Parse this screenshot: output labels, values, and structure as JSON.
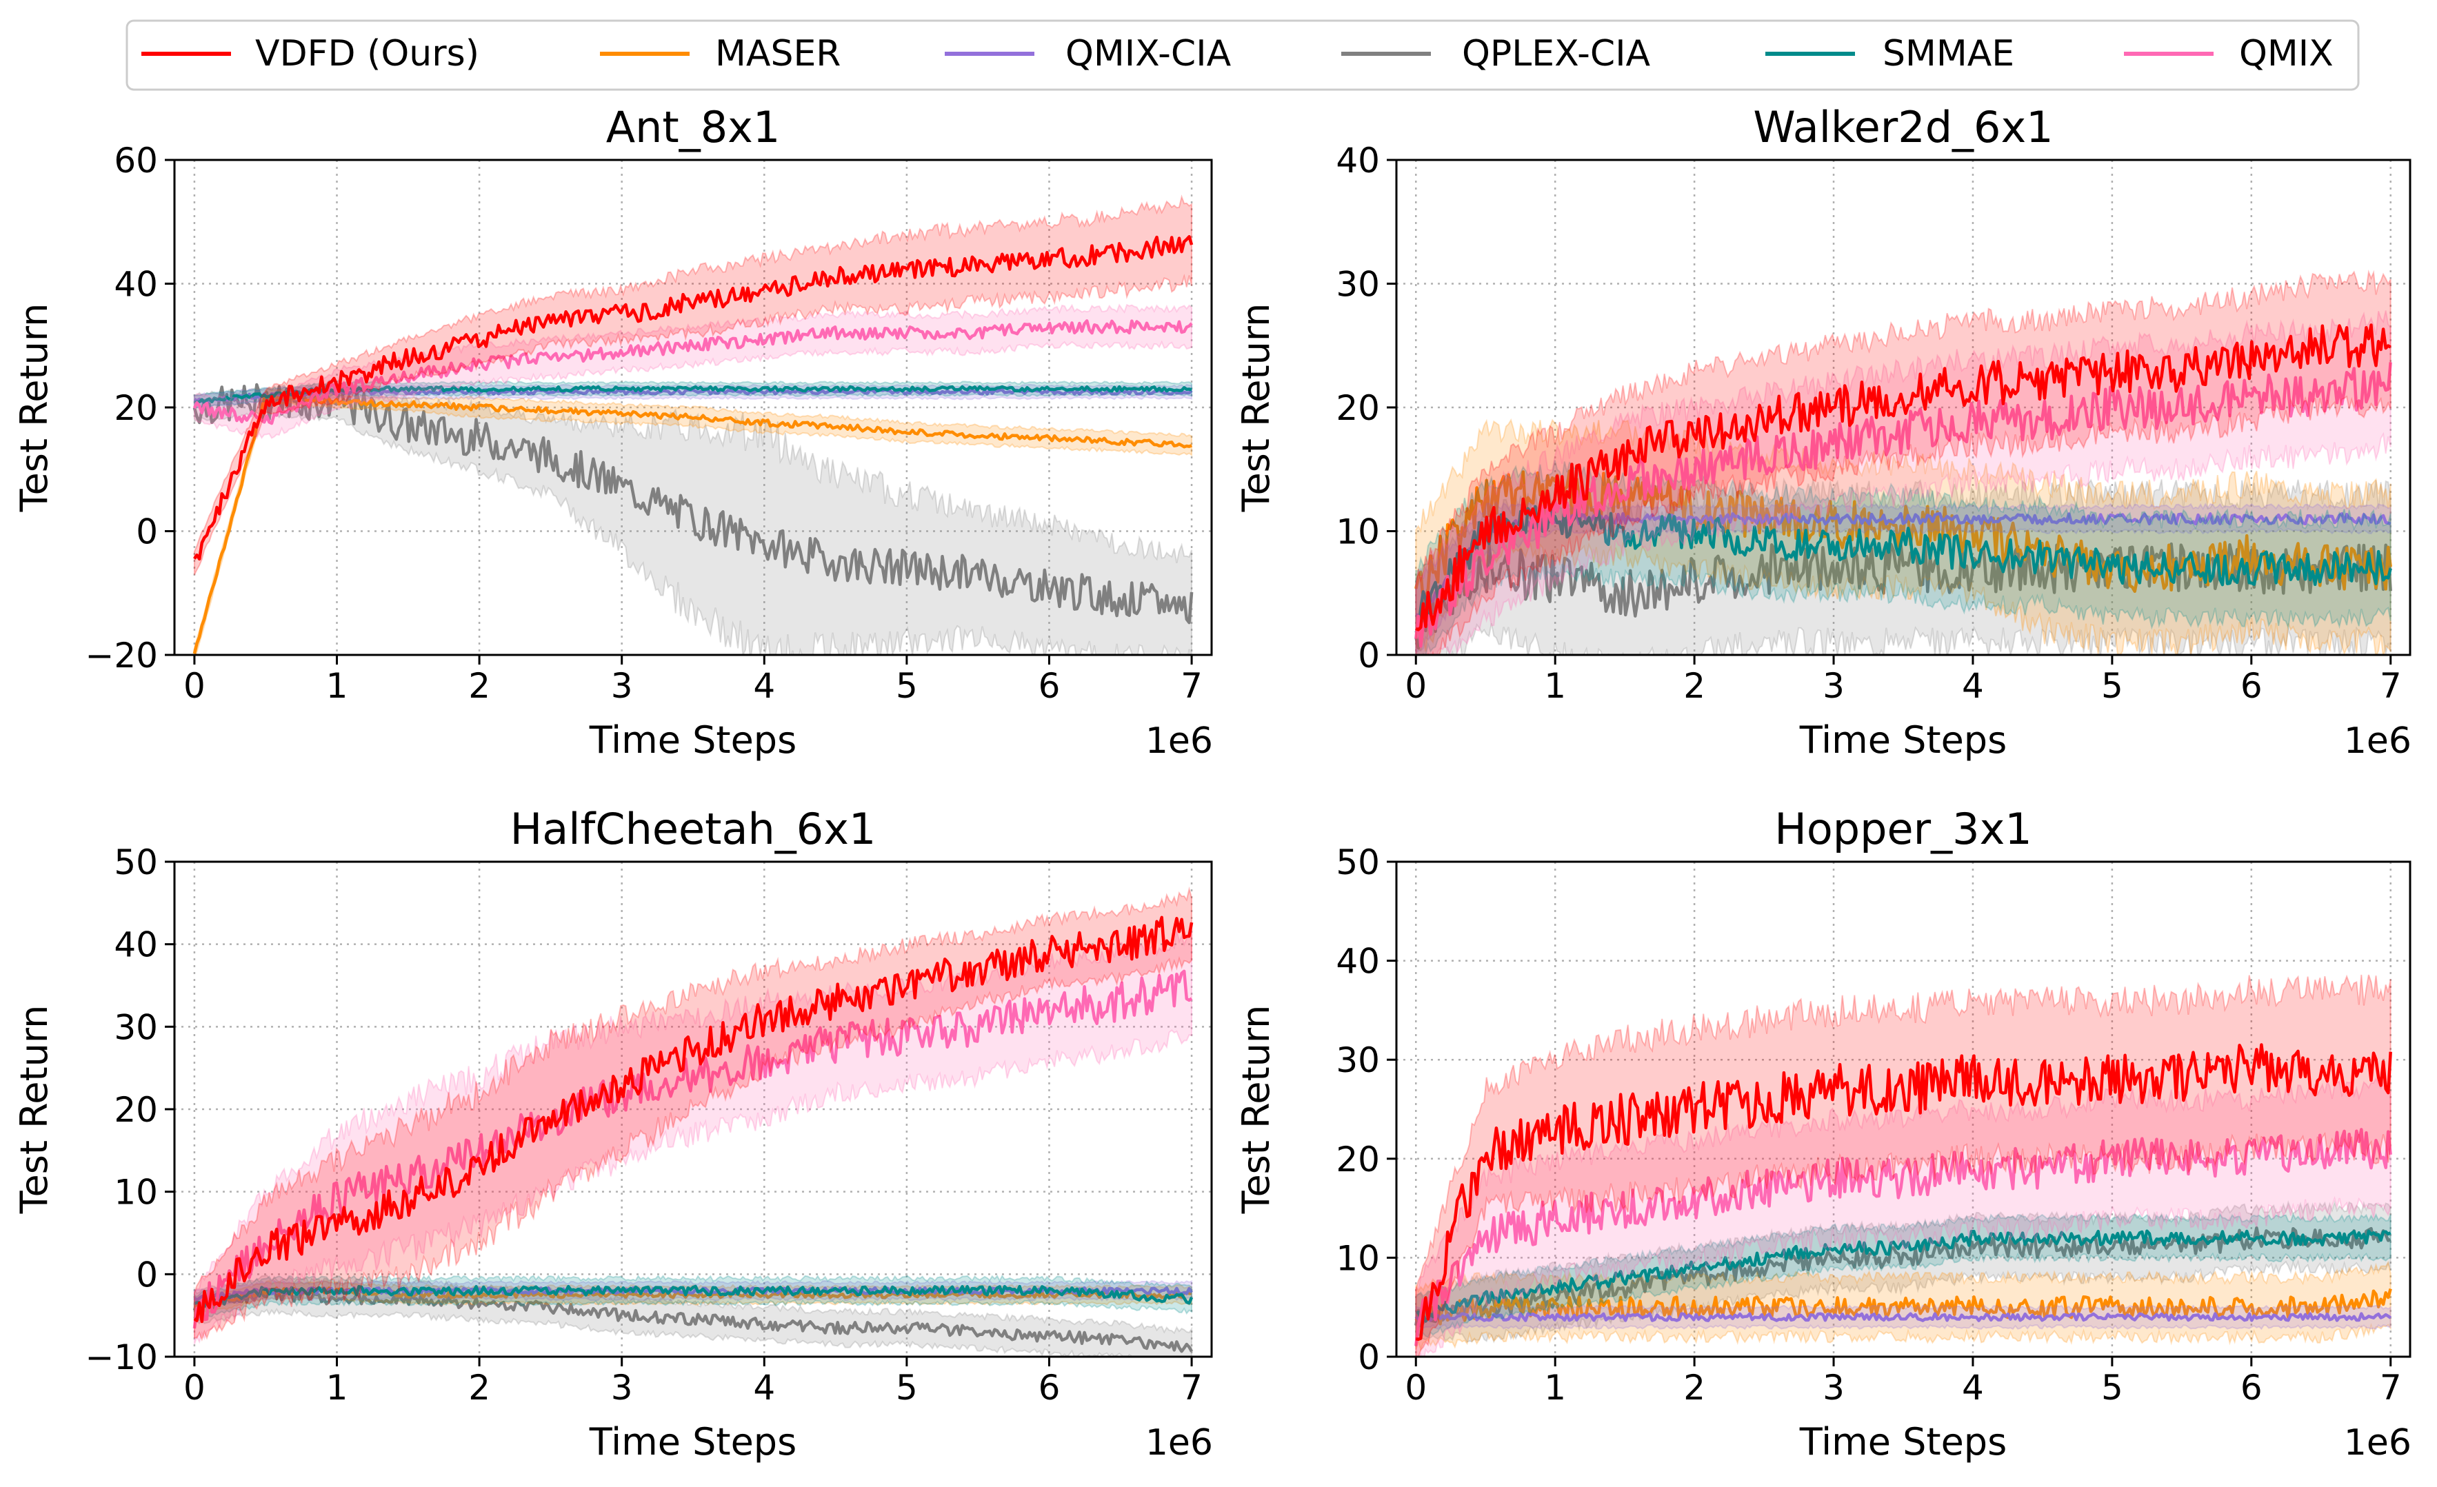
{
  "legend": {
    "entries": [
      {
        "name": "VDFD (Ours)",
        "color": "#ff0000"
      },
      {
        "name": "MASER",
        "color": "#ff8c00"
      },
      {
        "name": "QMIX-CIA",
        "color": "#9370db"
      },
      {
        "name": "QPLEX-CIA",
        "color": "#808080"
      },
      {
        "name": "SMMAE",
        "color": "#008b8b"
      },
      {
        "name": "QMIX",
        "color": "#ff69b4"
      }
    ]
  },
  "chart_data": [
    {
      "type": "line",
      "title": "Ant_8x1",
      "xlabel": "Time Steps",
      "ylabel": "Test Return",
      "x_multiplier": "1e6",
      "xlim": [
        0,
        7
      ],
      "ylim": [
        -20,
        60
      ],
      "xticks": [
        "0",
        "1",
        "2",
        "3",
        "4",
        "5",
        "6",
        "7"
      ],
      "yticks": [
        "−20",
        "0",
        "20",
        "40",
        "60"
      ],
      "ytick_values": [
        -20,
        0,
        20,
        40,
        60
      ],
      "grid": true,
      "x": [
        0,
        0.5,
        1,
        1.5,
        2,
        2.5,
        3,
        3.5,
        4,
        4.5,
        5,
        5.5,
        6,
        6.5,
        7
      ],
      "series": [
        {
          "name": "VDFD (Ours)",
          "values": [
            -5,
            21,
            24,
            28,
            31,
            34,
            35,
            37,
            39,
            41,
            42,
            43,
            44,
            45,
            47
          ],
          "band": [
            2,
            2,
            3,
            3,
            4,
            4,
            4,
            5,
            5,
            5,
            6,
            6,
            6,
            6,
            7
          ]
        },
        {
          "name": "MASER",
          "values": [
            -20,
            22,
            21,
            20.5,
            20,
            19.5,
            19,
            18.5,
            17.5,
            17,
            16,
            15.5,
            15,
            14.5,
            14
          ],
          "band": [
            1,
            1,
            1,
            1,
            1.5,
            1.5,
            1.5,
            1.5,
            1.5,
            1.5,
            1.5,
            1.5,
            1.5,
            1.5,
            1.5
          ]
        },
        {
          "name": "QMIX-CIA",
          "values": [
            21,
            22,
            22.5,
            22.5,
            22.5,
            22.5,
            22.5,
            22.5,
            22.5,
            22.5,
            22.5,
            22.5,
            22.5,
            22.5,
            22.5
          ],
          "band": [
            1,
            1,
            1,
            1,
            1,
            1,
            1,
            1,
            1,
            1,
            1,
            1,
            1,
            1,
            1
          ]
        },
        {
          "name": "QPLEX-CIA",
          "values": [
            20,
            21,
            21,
            17,
            15,
            12,
            7,
            2,
            -2,
            -5,
            -6,
            -7,
            -9,
            -11,
            -12
          ],
          "band": [
            2,
            2,
            3,
            4,
            5,
            6,
            10,
            15,
            18,
            14,
            12,
            10,
            10,
            9,
            8
          ]
        },
        {
          "name": "SMMAE",
          "values": [
            21,
            22,
            23,
            23,
            23,
            23,
            23,
            23,
            23,
            23,
            23,
            23,
            23,
            23,
            23
          ],
          "band": [
            1,
            1,
            1,
            1,
            1,
            1,
            1,
            1,
            1,
            1,
            1,
            1,
            1,
            1,
            1
          ]
        },
        {
          "name": "QMIX",
          "values": [
            20,
            18,
            23,
            25,
            27,
            28,
            29,
            30,
            31,
            32,
            32,
            32,
            33,
            33,
            33
          ],
          "band": [
            2,
            3,
            3,
            3,
            3,
            3,
            3,
            3,
            3,
            3,
            3,
            3,
            3,
            3,
            3
          ]
        }
      ]
    },
    {
      "type": "line",
      "title": "Walker2d_6x1",
      "xlabel": "Time Steps",
      "ylabel": "Test Return",
      "x_multiplier": "1e6",
      "xlim": [
        0,
        7
      ],
      "ylim": [
        0,
        40
      ],
      "xticks": [
        "0",
        "1",
        "2",
        "3",
        "4",
        "5",
        "6",
        "7"
      ],
      "yticks": [
        "0",
        "10",
        "20",
        "30",
        "40"
      ],
      "ytick_values": [
        0,
        10,
        20,
        30,
        40
      ],
      "grid": true,
      "x": [
        0,
        0.5,
        1,
        1.5,
        2,
        2.5,
        3,
        3.5,
        4,
        4.5,
        5,
        5.5,
        6,
        6.5,
        7
      ],
      "series": [
        {
          "name": "VDFD (Ours)",
          "values": [
            2,
            10,
            13,
            16,
            18,
            19,
            20,
            21,
            22,
            22,
            23,
            23,
            24,
            25,
            25
          ],
          "band": [
            4,
            5,
            5,
            5,
            5,
            5,
            5,
            5,
            5,
            5,
            5,
            5,
            5,
            5,
            5
          ]
        },
        {
          "name": "MASER",
          "values": [
            5,
            13,
            13,
            13,
            12,
            11,
            10.5,
            10.5,
            10,
            8,
            7,
            7,
            8,
            7,
            7
          ],
          "band": [
            5,
            5,
            5,
            5,
            5,
            5,
            5,
            5,
            5,
            6,
            6,
            6,
            6,
            6,
            6
          ]
        },
        {
          "name": "QMIX-CIA",
          "values": [
            3,
            10,
            11,
            11,
            11,
            11,
            11,
            11,
            11,
            11,
            11,
            11,
            11,
            11,
            11
          ],
          "band": [
            3,
            2,
            1,
            1,
            1,
            1,
            1,
            1,
            1,
            1,
            1,
            1,
            1,
            1,
            1
          ]
        },
        {
          "name": "QPLEX-CIA",
          "values": [
            2,
            7,
            6,
            5,
            6,
            7,
            7,
            7,
            7,
            7,
            7,
            7,
            7,
            7,
            7
          ],
          "band": [
            4,
            5,
            6,
            6,
            6,
            6,
            6,
            6,
            6,
            6,
            6,
            6,
            6,
            6,
            6
          ]
        },
        {
          "name": "SMMAE",
          "values": [
            3,
            10,
            11,
            10,
            10,
            9,
            9,
            9,
            8,
            8,
            7,
            7,
            7,
            7,
            7
          ],
          "band": [
            4,
            4,
            4,
            4,
            4,
            4,
            4,
            4,
            4,
            4,
            4,
            4,
            4,
            4,
            4
          ]
        },
        {
          "name": "QMIX",
          "values": [
            2,
            8,
            11,
            14,
            15,
            16,
            17,
            18,
            19,
            19,
            20,
            20,
            21,
            21,
            22
          ],
          "band": [
            4,
            5,
            5,
            5,
            5,
            5,
            5,
            5,
            5,
            5,
            5,
            5,
            5,
            5,
            5
          ]
        }
      ]
    },
    {
      "type": "line",
      "title": "HalfCheetah_6x1",
      "xlabel": "Time Steps",
      "ylabel": "Test Return",
      "x_multiplier": "1e6",
      "xlim": [
        0,
        7
      ],
      "ylim": [
        -10,
        50
      ],
      "xticks": [
        "0",
        "1",
        "2",
        "3",
        "4",
        "5",
        "6",
        "7"
      ],
      "yticks": [
        "−10",
        "0",
        "10",
        "20",
        "30",
        "40",
        "50"
      ],
      "ytick_values": [
        -10,
        0,
        10,
        20,
        30,
        40,
        50
      ],
      "grid": true,
      "x": [
        0,
        0.5,
        1,
        1.5,
        2,
        2.5,
        3,
        3.5,
        4,
        4.5,
        5,
        5.5,
        6,
        6.5,
        7
      ],
      "series": [
        {
          "name": "VDFD (Ours)",
          "values": [
            -5,
            3,
            6,
            9,
            13,
            19,
            23,
            27,
            31,
            33,
            35,
            37,
            39,
            40,
            42
          ],
          "band": [
            3,
            6,
            8,
            9,
            9,
            9,
            8,
            7,
            6,
            5,
            5,
            4,
            4,
            4,
            4
          ]
        },
        {
          "name": "MASER",
          "values": [
            -4,
            -2,
            -2,
            -2.5,
            -2.5,
            -2.5,
            -2.5,
            -2.5,
            -2.5,
            -2.5,
            -2.5,
            -2.5,
            -2.5,
            -2.5,
            -2.5
          ],
          "band": [
            1,
            1,
            1,
            1,
            1,
            1,
            1,
            1,
            1,
            1,
            1,
            1,
            1,
            1,
            1
          ]
        },
        {
          "name": "QMIX-CIA",
          "values": [
            -3,
            -2,
            -2,
            -2,
            -2,
            -2,
            -2,
            -2,
            -2,
            -2,
            -2,
            -2,
            -2,
            -2,
            -2
          ],
          "band": [
            1,
            1,
            1,
            1,
            1,
            1,
            1,
            1,
            1,
            1,
            1,
            1,
            1,
            1,
            1
          ]
        },
        {
          "name": "QPLEX-CIA",
          "values": [
            -4,
            -2.5,
            -3,
            -3,
            -3.5,
            -4,
            -5,
            -5.5,
            -6,
            -6.5,
            -6.5,
            -7,
            -7.5,
            -8,
            -9
          ],
          "band": [
            2,
            2,
            2,
            2,
            2,
            2,
            2,
            2,
            2,
            2,
            2,
            2,
            2,
            2,
            2
          ]
        },
        {
          "name": "SMMAE",
          "values": [
            -4,
            -2,
            -2,
            -2,
            -2,
            -2,
            -2,
            -2,
            -2,
            -2,
            -2,
            -2,
            -2,
            -2.5,
            -3
          ],
          "band": [
            1.5,
            1.5,
            1.5,
            1.5,
            1.5,
            1.5,
            1.5,
            1.5,
            1.5,
            1.5,
            1.5,
            1.5,
            1.5,
            1.5,
            1.5
          ]
        },
        {
          "name": "QMIX",
          "values": [
            -5,
            4,
            9,
            12,
            15,
            19,
            22,
            24,
            26,
            28,
            29,
            30,
            32,
            33,
            35
          ],
          "band": [
            3,
            6,
            8,
            9,
            9,
            9,
            8,
            7,
            7,
            6,
            6,
            6,
            6,
            6,
            6
          ]
        }
      ]
    },
    {
      "type": "line",
      "title": "Hopper_3x1",
      "xlabel": "Time Steps",
      "ylabel": "Test Return",
      "x_multiplier": "1e6",
      "xlim": [
        0,
        7
      ],
      "ylim": [
        0,
        50
      ],
      "xticks": [
        "0",
        "1",
        "2",
        "3",
        "4",
        "5",
        "6",
        "7"
      ],
      "yticks": [
        "0",
        "10",
        "20",
        "30",
        "40",
        "50"
      ],
      "ytick_values": [
        0,
        10,
        20,
        30,
        40,
        50
      ],
      "grid": true,
      "x": [
        0,
        0.5,
        1,
        1.5,
        2,
        2.5,
        3,
        3.5,
        4,
        4.5,
        5,
        5.5,
        6,
        6.5,
        7
      ],
      "series": [
        {
          "name": "VDFD (Ours)",
          "values": [
            3,
            21,
            23,
            24,
            25,
            26,
            27,
            27,
            28,
            28,
            28,
            28,
            29,
            29,
            29
          ],
          "band": [
            4,
            6,
            7,
            8,
            8,
            8,
            8,
            8,
            8,
            8,
            8,
            8,
            8,
            8,
            8
          ]
        },
        {
          "name": "MASER",
          "values": [
            4,
            5,
            5,
            5,
            5,
            5,
            5,
            5,
            5,
            5,
            5,
            5,
            5,
            5,
            6
          ],
          "band": [
            3,
            3,
            3,
            3,
            3,
            3,
            3,
            3,
            3,
            3,
            3,
            3,
            3,
            3,
            3
          ]
        },
        {
          "name": "QMIX-CIA",
          "values": [
            4,
            4,
            4,
            4,
            4,
            4,
            4,
            4,
            4,
            4,
            4,
            4,
            4,
            4,
            4
          ],
          "band": [
            1,
            1,
            1,
            1,
            1,
            1,
            1,
            1,
            1,
            1,
            1,
            1,
            1,
            1,
            1
          ]
        },
        {
          "name": "QPLEX-CIA",
          "values": [
            4,
            5,
            6,
            7,
            8,
            9,
            10,
            10,
            11,
            11,
            11,
            11,
            12,
            12,
            12
          ],
          "band": [
            2,
            3,
            3,
            3,
            3,
            3,
            3,
            3,
            3,
            3,
            3,
            3,
            3,
            3,
            3
          ]
        },
        {
          "name": "SMMAE",
          "values": [
            4,
            6,
            7,
            8,
            9,
            10,
            11,
            11,
            12,
            12,
            12,
            12,
            12,
            12,
            12
          ],
          "band": [
            2,
            2,
            2,
            2,
            2,
            2,
            2,
            2,
            2,
            2,
            2,
            2,
            2,
            2,
            2
          ]
        },
        {
          "name": "QMIX",
          "values": [
            3,
            12,
            14,
            15,
            16,
            17,
            18,
            18,
            19,
            19,
            20,
            20,
            20,
            21,
            21
          ],
          "band": [
            4,
            6,
            6,
            6,
            6,
            6,
            6,
            6,
            6,
            6,
            6,
            6,
            6,
            6,
            6
          ]
        }
      ]
    }
  ]
}
